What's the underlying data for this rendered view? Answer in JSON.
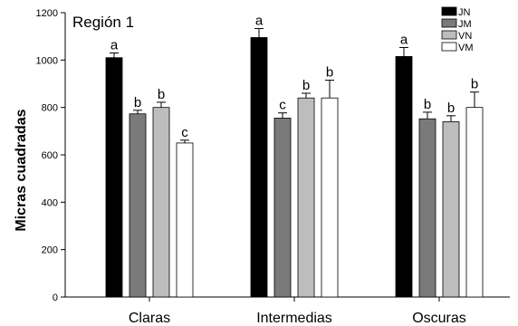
{
  "chart_data": {
    "type": "bar",
    "annotation": "Región 1",
    "xlabel": "",
    "ylabel": "Micras cuadradas",
    "ylim": [
      0,
      1200
    ],
    "yticks": [
      0,
      200,
      400,
      600,
      800,
      1000,
      1200
    ],
    "grid": false,
    "legend": "top-right",
    "categories": [
      "Claras",
      "Intermedias",
      "Oscuras"
    ],
    "series": [
      {
        "name": "JN",
        "color": "#000000",
        "values": [
          1010,
          1095,
          1015
        ],
        "errors": [
          20,
          38,
          38
        ],
        "letters": [
          "a",
          "a",
          "a"
        ]
      },
      {
        "name": "JM",
        "color": "#7a7a7a",
        "values": [
          773,
          755,
          752
        ],
        "errors": [
          15,
          22,
          28
        ],
        "letters": [
          "b",
          "c",
          "b"
        ]
      },
      {
        "name": "VN",
        "color": "#bdbdbd",
        "values": [
          800,
          840,
          740
        ],
        "errors": [
          22,
          20,
          25
        ],
        "letters": [
          "b",
          "b",
          "b"
        ]
      },
      {
        "name": "VM",
        "color": "#ffffff",
        "values": [
          650,
          840,
          800
        ],
        "errors": [
          12,
          75,
          65
        ],
        "letters": [
          "c",
          "b",
          "b"
        ]
      }
    ]
  }
}
